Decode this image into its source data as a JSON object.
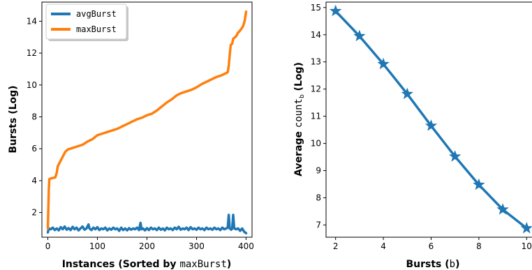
{
  "chart_data": [
    {
      "type": "line",
      "xlabel_bold": "Instances (Sorted  by ",
      "xlabel_mono": "maxBurst",
      "xlabel_close": ")",
      "ylabel": "Bursts (Log)",
      "xlim": [
        -12,
        412
      ],
      "ylim": [
        0.45,
        15.2
      ],
      "xticks": [
        0,
        100,
        200,
        300,
        400
      ],
      "yticks": [
        2,
        4,
        6,
        8,
        10,
        12,
        14
      ],
      "legend": {
        "placement": "top-left"
      },
      "series": [
        {
          "name": "avgBurst",
          "color": "#1f77b4",
          "points": [
            [
              0,
              0.75
            ],
            [
              2,
              1.0
            ],
            [
              6,
              0.95
            ],
            [
              10,
              1.05
            ],
            [
              14,
              0.9
            ],
            [
              18,
              1.0
            ],
            [
              22,
              0.88
            ],
            [
              26,
              1.08
            ],
            [
              30,
              0.95
            ],
            [
              34,
              1.12
            ],
            [
              38,
              0.92
            ],
            [
              42,
              1.02
            ],
            [
              46,
              0.9
            ],
            [
              50,
              1.1
            ],
            [
              54,
              0.95
            ],
            [
              58,
              1.05
            ],
            [
              62,
              0.88
            ],
            [
              66,
              1.0
            ],
            [
              70,
              1.12
            ],
            [
              74,
              0.92
            ],
            [
              78,
              1.0
            ],
            [
              82,
              1.25
            ],
            [
              84,
              1.0
            ],
            [
              88,
              0.9
            ],
            [
              92,
              1.05
            ],
            [
              96,
              0.95
            ],
            [
              100,
              1.08
            ],
            [
              104,
              0.9
            ],
            [
              108,
              1.0
            ],
            [
              112,
              0.95
            ],
            [
              116,
              1.05
            ],
            [
              120,
              0.88
            ],
            [
              124,
              1.0
            ],
            [
              128,
              0.92
            ],
            [
              132,
              1.05
            ],
            [
              136,
              0.95
            ],
            [
              140,
              1.0
            ],
            [
              144,
              0.85
            ],
            [
              148,
              1.05
            ],
            [
              152,
              0.9
            ],
            [
              156,
              1.0
            ],
            [
              160,
              0.88
            ],
            [
              164,
              1.02
            ],
            [
              168,
              0.92
            ],
            [
              172,
              1.0
            ],
            [
              176,
              0.95
            ],
            [
              180,
              1.05
            ],
            [
              184,
              0.9
            ],
            [
              187,
              1.35
            ],
            [
              189,
              0.95
            ],
            [
              192,
              1.0
            ],
            [
              196,
              0.88
            ],
            [
              200,
              1.02
            ],
            [
              204,
              0.9
            ],
            [
              208,
              1.05
            ],
            [
              212,
              0.95
            ],
            [
              216,
              1.0
            ],
            [
              220,
              0.9
            ],
            [
              224,
              1.05
            ],
            [
              228,
              0.92
            ],
            [
              232,
              1.0
            ],
            [
              236,
              0.88
            ],
            [
              240,
              1.05
            ],
            [
              244,
              0.95
            ],
            [
              248,
              1.0
            ],
            [
              252,
              0.9
            ],
            [
              256,
              1.05
            ],
            [
              260,
              0.95
            ],
            [
              264,
              1.1
            ],
            [
              268,
              0.92
            ],
            [
              272,
              1.0
            ],
            [
              276,
              0.95
            ],
            [
              280,
              1.05
            ],
            [
              284,
              0.9
            ],
            [
              288,
              1.08
            ],
            [
              292,
              0.95
            ],
            [
              296,
              1.0
            ],
            [
              300,
              0.92
            ],
            [
              304,
              1.05
            ],
            [
              308,
              0.95
            ],
            [
              312,
              1.0
            ],
            [
              316,
              0.9
            ],
            [
              320,
              1.05
            ],
            [
              324,
              0.95
            ],
            [
              328,
              1.0
            ],
            [
              332,
              0.92
            ],
            [
              336,
              1.05
            ],
            [
              340,
              0.95
            ],
            [
              344,
              1.0
            ],
            [
              348,
              0.9
            ],
            [
              352,
              1.05
            ],
            [
              356,
              0.95
            ],
            [
              360,
              1.0
            ],
            [
              363,
              1.05
            ],
            [
              365,
              1.85
            ],
            [
              367,
              1.0
            ],
            [
              370,
              0.92
            ],
            [
              372,
              1.0
            ],
            [
              374,
              1.85
            ],
            [
              376,
              1.0
            ],
            [
              380,
              0.95
            ],
            [
              384,
              1.0
            ],
            [
              388,
              0.85
            ],
            [
              392,
              1.0
            ],
            [
              396,
              0.8
            ],
            [
              400,
              0.7
            ]
          ]
        },
        {
          "name": "maxBurst",
          "color": "#ff7f0e",
          "points": [
            [
              0,
              1.0
            ],
            [
              2,
              3.5
            ],
            [
              3,
              4.1
            ],
            [
              8,
              4.15
            ],
            [
              15,
              4.2
            ],
            [
              18,
              4.5
            ],
            [
              20,
              4.9
            ],
            [
              25,
              5.2
            ],
            [
              30,
              5.5
            ],
            [
              35,
              5.8
            ],
            [
              40,
              5.95
            ],
            [
              50,
              6.05
            ],
            [
              60,
              6.15
            ],
            [
              70,
              6.25
            ],
            [
              80,
              6.45
            ],
            [
              90,
              6.6
            ],
            [
              100,
              6.85
            ],
            [
              110,
              6.95
            ],
            [
              120,
              7.05
            ],
            [
              130,
              7.15
            ],
            [
              140,
              7.25
            ],
            [
              150,
              7.4
            ],
            [
              160,
              7.55
            ],
            [
              170,
              7.7
            ],
            [
              180,
              7.85
            ],
            [
              190,
              7.95
            ],
            [
              200,
              8.1
            ],
            [
              210,
              8.2
            ],
            [
              220,
              8.4
            ],
            [
              230,
              8.65
            ],
            [
              240,
              8.9
            ],
            [
              250,
              9.1
            ],
            [
              260,
              9.35
            ],
            [
              270,
              9.5
            ],
            [
              280,
              9.6
            ],
            [
              290,
              9.7
            ],
            [
              300,
              9.85
            ],
            [
              310,
              10.05
            ],
            [
              320,
              10.2
            ],
            [
              330,
              10.35
            ],
            [
              340,
              10.5
            ],
            [
              350,
              10.6
            ],
            [
              360,
              10.75
            ],
            [
              363,
              10.8
            ],
            [
              365,
              11.2
            ],
            [
              367,
              11.9
            ],
            [
              369,
              12.5
            ],
            [
              372,
              12.6
            ],
            [
              374,
              12.9
            ],
            [
              378,
              13.0
            ],
            [
              381,
              13.1
            ],
            [
              383,
              13.25
            ],
            [
              386,
              13.35
            ],
            [
              390,
              13.5
            ],
            [
              394,
              13.7
            ],
            [
              397,
              14.0
            ],
            [
              400,
              14.6
            ]
          ]
        }
      ]
    },
    {
      "type": "line",
      "xlabel_bold": "Bursts (",
      "xlabel_mono": "b",
      "xlabel_close": ")",
      "ylabel_bold": "Average ",
      "ylabel_mono": "count",
      "ylabel_sub": "b",
      "ylabel_close": " (Log)",
      "xlim": [
        1.6,
        10.4
      ],
      "ylim": [
        6.55,
        15.2
      ],
      "xticks": [
        2,
        4,
        6,
        8,
        10
      ],
      "yticks": [
        7,
        8,
        9,
        10,
        11,
        12,
        13,
        14,
        15
      ],
      "marker": "star",
      "series": [
        {
          "color": "#1f77b4",
          "points": [
            [
              2,
              14.87
            ],
            [
              3,
              13.95
            ],
            [
              4,
              12.92
            ],
            [
              5,
              11.82
            ],
            [
              6,
              10.65
            ],
            [
              7,
              9.52
            ],
            [
              8,
              8.48
            ],
            [
              9,
              7.57
            ],
            [
              10,
              6.88
            ]
          ]
        }
      ]
    }
  ]
}
